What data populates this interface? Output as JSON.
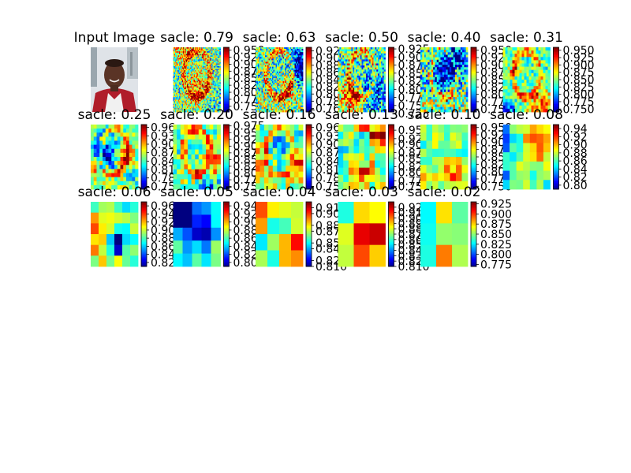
{
  "figure": {
    "input_title": "Input Image",
    "colormap": "jet"
  },
  "chart_data": [
    {
      "type": "image",
      "title": "Input Image",
      "content": "portrait photo of a smiling man in a white shirt and red collar, city buildings in background"
    },
    {
      "type": "heatmap",
      "title": "sacle: 0.79",
      "scale": 0.79,
      "grid": 48,
      "colorbar": {
        "min": 0.73,
        "max": 0.96,
        "ticks": [
          "0.950",
          "0.925",
          "0.900",
          "0.875",
          "0.850",
          "0.825",
          "0.800",
          "0.775",
          "0.750"
        ]
      }
    },
    {
      "type": "heatmap",
      "title": "sacle: 0.63",
      "scale": 0.63,
      "grid": 40,
      "colorbar": {
        "min": 0.75,
        "max": 0.93,
        "ticks": [
          "0.92",
          "0.90",
          "0.88",
          "0.86",
          "0.84",
          "0.82",
          "0.80",
          "0.78",
          "0.76"
        ]
      }
    },
    {
      "type": "heatmap",
      "title": "sacle: 0.50",
      "scale": 0.5,
      "grid": 32,
      "colorbar": {
        "min": 0.73,
        "max": 0.93,
        "ticks": [
          "0.925",
          "0.900",
          "0.875",
          "0.850",
          "0.825",
          "0.800",
          "0.775",
          "0.750",
          "0.725"
        ]
      }
    },
    {
      "type": "heatmap",
      "title": "sacle: 0.40",
      "scale": 0.4,
      "grid": 26,
      "colorbar": {
        "min": 0.74,
        "max": 0.96,
        "ticks": [
          "0.950",
          "0.925",
          "0.900",
          "0.875",
          "0.850",
          "0.825",
          "0.800",
          "0.775",
          "0.750"
        ]
      }
    },
    {
      "type": "heatmap",
      "title": "sacle: 0.31",
      "scale": 0.31,
      "grid": 20,
      "colorbar": {
        "min": 0.74,
        "max": 0.96,
        "ticks": [
          "0.950",
          "0.925",
          "0.900",
          "0.875",
          "0.850",
          "0.825",
          "0.800",
          "0.775",
          "0.750"
        ]
      }
    },
    {
      "type": "heatmap",
      "title": "sacle: 0.25",
      "scale": 0.25,
      "grid": 16,
      "colorbar": {
        "min": 0.74,
        "max": 0.97,
        "ticks": [
          "0.96",
          "0.93",
          "0.90",
          "0.87",
          "0.84",
          "0.81",
          "0.78",
          "0.75"
        ]
      }
    },
    {
      "type": "heatmap",
      "title": "sacle: 0.20",
      "scale": 0.2,
      "grid": 13,
      "colorbar": {
        "min": 0.74,
        "max": 0.98,
        "ticks": [
          "0.975",
          "0.950",
          "0.925",
          "0.900",
          "0.875",
          "0.850",
          "0.825",
          "0.800",
          "0.775",
          "0.750"
        ]
      }
    },
    {
      "type": "heatmap",
      "title": "sacle: 0.16",
      "scale": 0.16,
      "grid": 11,
      "colorbar": {
        "min": 0.74,
        "max": 0.97,
        "ticks": [
          "0.96",
          "0.93",
          "0.90",
          "0.87",
          "0.84",
          "0.81",
          "0.78",
          "0.75"
        ]
      }
    },
    {
      "type": "heatmap",
      "title": "sacle: 0.13",
      "scale": 0.13,
      "grid": 9,
      "colorbar": {
        "min": 0.74,
        "max": 0.97,
        "ticks": [
          "0.95",
          "0.92",
          "0.90",
          "0.87",
          "0.85",
          "0.82",
          "0.80",
          "0.77",
          "0.75"
        ]
      }
    },
    {
      "type": "heatmap",
      "title": "sacle: 0.10",
      "scale": 0.1,
      "grid": 8,
      "colorbar": {
        "min": 0.74,
        "max": 0.96,
        "ticks": [
          "0.950",
          "0.925",
          "0.900",
          "0.875",
          "0.850",
          "0.825",
          "0.800",
          "0.775",
          "0.750"
        ]
      }
    },
    {
      "type": "heatmap",
      "title": "sacle: 0.08",
      "scale": 0.08,
      "grid": 7,
      "colorbar": {
        "min": 0.79,
        "max": 0.95,
        "ticks": [
          "0.94",
          "0.92",
          "0.90",
          "0.88",
          "0.86",
          "0.84",
          "0.82",
          "0.80"
        ]
      }
    },
    {
      "type": "heatmap",
      "title": "sacle: 0.06",
      "scale": 0.06,
      "grid": 6,
      "colorbar": {
        "min": 0.81,
        "max": 0.97,
        "ticks": [
          "0.96",
          "0.94",
          "0.92",
          "0.90",
          "0.88",
          "0.86",
          "0.84",
          "0.82"
        ]
      }
    },
    {
      "type": "heatmap",
      "title": "sacle: 0.05",
      "scale": 0.05,
      "grid": 5,
      "colorbar": {
        "min": 0.79,
        "max": 0.95,
        "ticks": [
          "0.94",
          "0.92",
          "0.90",
          "0.88",
          "0.86",
          "0.84",
          "0.82",
          "0.80"
        ]
      }
    },
    {
      "type": "heatmap",
      "title": "sacle: 0.04",
      "scale": 0.04,
      "grid": 4,
      "colorbar": {
        "min": 0.81,
        "max": 0.92,
        "ticks": [
          "0.910",
          "0.900",
          "0.880",
          "0.870",
          "0.850",
          "0.840",
          "0.820",
          "0.810"
        ]
      }
    },
    {
      "type": "heatmap",
      "title": "sacle: 0.03",
      "scale": 0.03,
      "grid": 3,
      "colorbar": {
        "min": 0.81,
        "max": 0.93,
        "ticks": [
          "0.920",
          "0.910",
          "0.900",
          "0.890",
          "0.880",
          "0.870",
          "0.860",
          "0.850",
          "0.840",
          "0.830",
          "0.820",
          "0.810"
        ]
      }
    },
    {
      "type": "heatmap",
      "title": "sacle: 0.02",
      "scale": 0.02,
      "grid": 3,
      "colorbar": {
        "min": 0.77,
        "max": 0.93,
        "ticks": [
          "0.925",
          "0.900",
          "0.875",
          "0.850",
          "0.825",
          "0.800",
          "0.775"
        ]
      }
    }
  ]
}
